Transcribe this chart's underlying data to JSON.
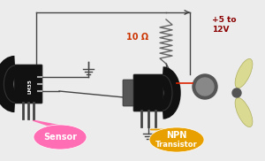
{
  "bg_color": "#ececec",
  "wire_color": "#444444",
  "red_wire_color": "#dd2200",
  "sensor_bubble_color": "#ff6eb4",
  "npn_bubble_color": "#e8a000",
  "lm35_body_color": "#111111",
  "npn_body_color": "#111111",
  "npn_tab_color": "#555555",
  "motor_color": "#555555",
  "motor_inner_color": "#888888",
  "prop_color": "#d8d88a",
  "prop_edge_color": "#a8a855",
  "resistor_label": "10 Ω",
  "resistor_text_color": "#cc3300",
  "voltage_label": "+5 to\n12V",
  "voltage_text_color": "#8b0000",
  "sensor_text": "Sensor",
  "npn_text1": "NPN",
  "npn_text2": "Transistor",
  "lm35_text": "LM35"
}
